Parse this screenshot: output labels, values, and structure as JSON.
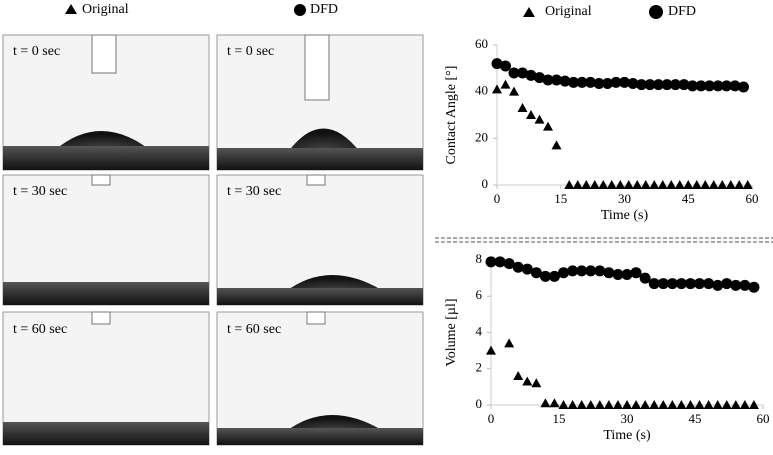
{
  "photos": [
    {
      "label": "t = 0 sec"
    },
    {
      "label": "t = 0 sec"
    },
    {
      "label": "t = 30 sec"
    },
    {
      "label": "t = 30 sec"
    },
    {
      "label": "t = 60 sec"
    },
    {
      "label": "t = 60 sec"
    }
  ],
  "chart_data": [
    {
      "type": "scatter",
      "y_label": "Contact Angle  [°]",
      "x_label": "Time (s)",
      "xlim": [
        0,
        60
      ],
      "xticks": [
        0,
        15,
        30,
        45,
        60
      ],
      "ylim": [
        0,
        60
      ],
      "yticks": [
        0,
        20,
        40,
        60
      ],
      "series": [
        {
          "name": "Original",
          "marker": "triangle",
          "color": "#000000",
          "x": [
            0,
            2,
            4,
            6,
            8,
            10,
            12,
            14,
            17,
            19,
            21,
            23,
            25,
            27,
            29,
            31,
            33,
            35,
            37,
            39,
            41,
            43,
            45,
            47,
            49,
            51,
            53,
            55,
            57,
            59
          ],
          "values": [
            41,
            43,
            40,
            33,
            30,
            28,
            25,
            17,
            0,
            0,
            0,
            0,
            0,
            0,
            0,
            0,
            0,
            0,
            0,
            0,
            0,
            0,
            0,
            0,
            0,
            0,
            0,
            0,
            0,
            0
          ]
        },
        {
          "name": "DFD",
          "marker": "circle",
          "color": "#000000",
          "x": [
            0,
            2,
            4,
            6,
            8,
            10,
            12,
            14,
            16,
            18,
            20,
            22,
            24,
            26,
            28,
            30,
            32,
            34,
            36,
            38,
            40,
            42,
            44,
            46,
            48,
            50,
            52,
            54,
            56,
            58
          ],
          "values": [
            52,
            51,
            48,
            48,
            47,
            46,
            45,
            45,
            44.5,
            44,
            44,
            44,
            43.5,
            43.5,
            44,
            44,
            43.5,
            43,
            43,
            43,
            43,
            43,
            43,
            42.5,
            42.5,
            42.5,
            42.5,
            42.5,
            42.5,
            42
          ]
        }
      ]
    },
    {
      "type": "scatter",
      "y_label": "Volume [µl]",
      "x_label": "Time (s)",
      "xlim": [
        0,
        60
      ],
      "xticks": [
        0,
        15,
        30,
        45,
        60
      ],
      "ylim": [
        0,
        8
      ],
      "yticks": [
        0,
        2,
        4,
        6,
        8
      ],
      "series": [
        {
          "name": "Original",
          "marker": "triangle",
          "color": "#000000",
          "x": [
            0,
            4,
            6,
            8,
            10,
            12,
            14,
            16,
            18,
            20,
            22,
            24,
            26,
            28,
            30,
            32,
            34,
            36,
            38,
            40,
            42,
            44,
            46,
            48,
            50,
            52,
            54,
            56,
            58
          ],
          "values": [
            3.0,
            3.4,
            1.6,
            1.3,
            1.2,
            0.1,
            0.1,
            0,
            0,
            0,
            0,
            0,
            0,
            0,
            0,
            0,
            0,
            0,
            0,
            0,
            0,
            0,
            0,
            0,
            0,
            0,
            0,
            0,
            0
          ]
        },
        {
          "name": "DFD",
          "marker": "circle",
          "color": "#000000",
          "x": [
            0,
            2,
            4,
            6,
            8,
            10,
            12,
            14,
            16,
            18,
            20,
            22,
            24,
            26,
            28,
            30,
            32,
            34,
            36,
            38,
            40,
            42,
            44,
            46,
            48,
            50,
            52,
            54,
            56,
            58
          ],
          "values": [
            7.9,
            7.9,
            7.8,
            7.6,
            7.5,
            7.3,
            7.1,
            7.1,
            7.3,
            7.4,
            7.4,
            7.4,
            7.4,
            7.3,
            7.2,
            7.2,
            7.3,
            7.0,
            6.7,
            6.7,
            6.7,
            6.7,
            6.7,
            6.7,
            6.7,
            6.6,
            6.7,
            6.6,
            6.6,
            6.5
          ]
        }
      ]
    }
  ]
}
